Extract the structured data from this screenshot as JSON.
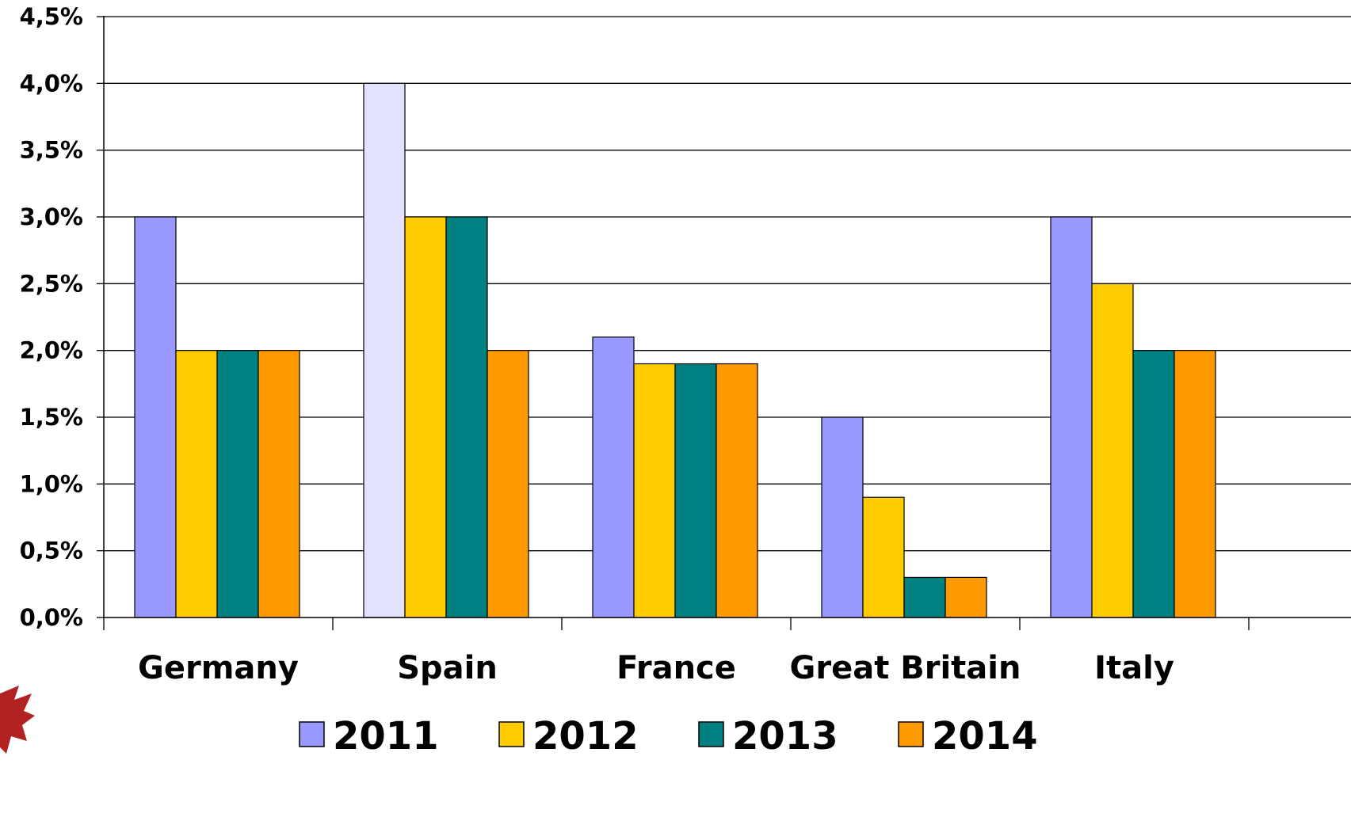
{
  "chart_data": {
    "type": "bar",
    "categories": [
      "Germany",
      "Spain",
      "France",
      "Great Britain",
      "Italy"
    ],
    "series": [
      {
        "name": "2011",
        "values": [
          3.0,
          4.0,
          2.1,
          1.5,
          3.0
        ],
        "color": "#9999FF",
        "highlight": {
          "index": 1,
          "color": "#E3E3FF"
        }
      },
      {
        "name": "2012",
        "values": [
          2.0,
          3.0,
          1.9,
          0.9,
          2.5
        ],
        "color": "#FFCC00"
      },
      {
        "name": "2013",
        "values": [
          2.0,
          3.0,
          1.9,
          0.3,
          2.0
        ],
        "color": "#008080"
      },
      {
        "name": "2014",
        "values": [
          2.0,
          2.0,
          1.9,
          0.3,
          2.0
        ],
        "color": "#FF9900"
      }
    ],
    "ylim": [
      0,
      4.5
    ],
    "yticks": [
      {
        "value": 0.0,
        "label": "0,0%"
      },
      {
        "value": 0.5,
        "label": "0,5%"
      },
      {
        "value": 1.0,
        "label": "1,0%"
      },
      {
        "value": 1.5,
        "label": "1,5%"
      },
      {
        "value": 2.0,
        "label": "2,0%"
      },
      {
        "value": 2.5,
        "label": "2,5%"
      },
      {
        "value": 3.0,
        "label": "3,0%"
      },
      {
        "value": 3.5,
        "label": "3,5%"
      },
      {
        "value": 4.0,
        "label": "4,0%"
      },
      {
        "value": 4.5,
        "label": "4,5%"
      }
    ],
    "grid": true,
    "legend": "bottom",
    "title": "",
    "xlabel": "",
    "ylabel": ""
  },
  "decorations": {
    "corner_mark_icon": "red-maple-leaf-icon",
    "corner_mark_color": "#B22222"
  }
}
